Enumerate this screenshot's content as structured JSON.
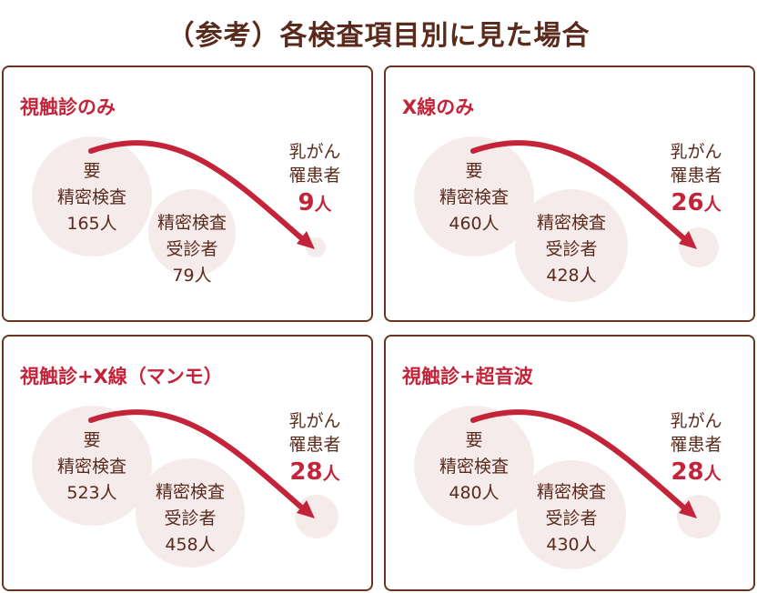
{
  "title": "（参考）各検査項目別に見た場合",
  "colors": {
    "accent": "#c4243a",
    "text": "#5a2a1c",
    "bubble": "#f5ebeb",
    "border": "#6b3522"
  },
  "panels": [
    {
      "title": "視触診のみ",
      "required": {
        "label1": "要",
        "label2": "精密検査",
        "count": "165人"
      },
      "examined": {
        "label1": "精密検査",
        "label2": "受診者",
        "count": "79人"
      },
      "cancer": {
        "label1": "乳がん",
        "label2": "罹患者",
        "number": "9",
        "unit": "人"
      }
    },
    {
      "title": "X線のみ",
      "required": {
        "label1": "要",
        "label2": "精密検査",
        "count": "460人"
      },
      "examined": {
        "label1": "精密検査",
        "label2": "受診者",
        "count": "428人"
      },
      "cancer": {
        "label1": "乳がん",
        "label2": "罹患者",
        "number": "26",
        "unit": "人"
      }
    },
    {
      "title": "視触診+X線（マンモ）",
      "required": {
        "label1": "要",
        "label2": "精密検査",
        "count": "523人"
      },
      "examined": {
        "label1": "精密検査",
        "label2": "受診者",
        "count": "458人"
      },
      "cancer": {
        "label1": "乳がん",
        "label2": "罹患者",
        "number": "28",
        "unit": "人"
      }
    },
    {
      "title": "視触診+超音波",
      "required": {
        "label1": "要",
        "label2": "精密検査",
        "count": "480人"
      },
      "examined": {
        "label1": "精密検査",
        "label2": "受診者",
        "count": "430人"
      },
      "cancer": {
        "label1": "乳がん",
        "label2": "罹患者",
        "number": "28",
        "unit": "人"
      }
    }
  ]
}
